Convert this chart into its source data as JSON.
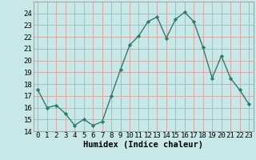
{
  "x": [
    0,
    1,
    2,
    3,
    4,
    5,
    6,
    7,
    8,
    9,
    10,
    11,
    12,
    13,
    14,
    15,
    16,
    17,
    18,
    19,
    20,
    21,
    22,
    23
  ],
  "y": [
    17.5,
    16.0,
    16.2,
    15.5,
    14.5,
    15.0,
    14.5,
    14.8,
    17.0,
    19.2,
    21.3,
    22.1,
    23.3,
    23.7,
    21.9,
    23.5,
    24.1,
    23.3,
    21.1,
    18.5,
    20.4,
    18.5,
    17.5,
    16.3
  ],
  "line_color": "#2d7d6f",
  "marker": "D",
  "marker_size": 2.2,
  "bg_color": "#c8e8e8",
  "grid_color": "#d4a0a0",
  "xlabel": "Humidex (Indice chaleur)",
  "ylim": [
    14,
    25
  ],
  "xlim": [
    -0.5,
    23.5
  ],
  "yticks": [
    14,
    15,
    16,
    17,
    18,
    19,
    20,
    21,
    22,
    23,
    24
  ],
  "xticks": [
    0,
    1,
    2,
    3,
    4,
    5,
    6,
    7,
    8,
    9,
    10,
    11,
    12,
    13,
    14,
    15,
    16,
    17,
    18,
    19,
    20,
    21,
    22,
    23
  ],
  "label_fontsize": 7.5,
  "tick_fontsize": 6.5
}
